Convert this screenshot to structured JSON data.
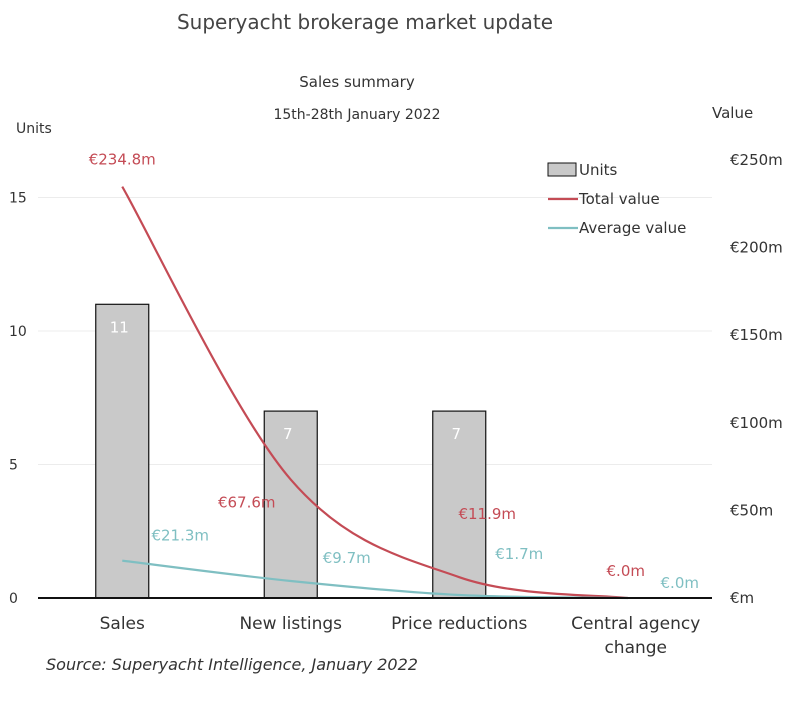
{
  "chart_data": {
    "type": "bar+line",
    "title": "Superyacht brokerage market update",
    "subtitle": "Sales summary",
    "date_range": "15th-28th January 2022",
    "categories": [
      "Sales",
      "New listings",
      "Price reductions",
      "Central agency change"
    ],
    "y_left": {
      "label": "Units",
      "ticks": [
        "0",
        "5",
        "10",
        "15"
      ],
      "range": [
        0,
        16
      ]
    },
    "y_right": {
      "label": "Value",
      "ticks": [
        "€m",
        "€50m",
        "€100m",
        "€150m",
        "€200m",
        "€250m"
      ],
      "range": [
        0,
        250
      ]
    },
    "series": [
      {
        "name": "Units",
        "kind": "bar",
        "axis": "left",
        "values": [
          11,
          7,
          7,
          0
        ],
        "data_labels": [
          "11",
          "7",
          "7",
          ""
        ],
        "color": "#c9c9c9"
      },
      {
        "name": "Total value",
        "kind": "line",
        "axis": "right",
        "values": [
          234.8,
          67.6,
          11.9,
          0
        ],
        "data_labels": [
          "€234.8m",
          "€67.6m",
          "€11.9m",
          "€.0m"
        ],
        "color": "#c44b55"
      },
      {
        "name": "Average value",
        "kind": "line",
        "axis": "right",
        "values": [
          21.3,
          9.7,
          1.7,
          0
        ],
        "data_labels": [
          "€21.3m",
          "€9.7m",
          "€1.7m",
          "€.0m"
        ],
        "color": "#7fbfc2"
      }
    ],
    "legend": {
      "placement": "top-right",
      "entries": [
        "Units",
        "Total value",
        "Average value"
      ]
    },
    "source": "Source: Superyacht Intelligence, January 2022",
    "grid": true
  }
}
